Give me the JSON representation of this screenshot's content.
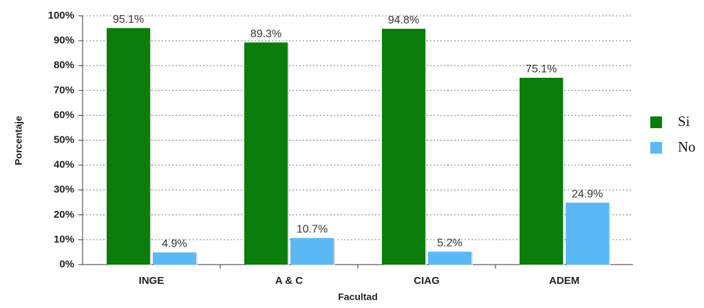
{
  "chart_data": {
    "type": "bar",
    "x_label": "Facultad",
    "y_label": "Porcentaje",
    "categories": [
      "INGE",
      "A & C",
      "CIAG",
      "ADEM"
    ],
    "series": [
      {
        "name": "Si",
        "color": "#0a7d0a",
        "values": [
          95.1,
          89.3,
          94.8,
          75.1
        ],
        "value_labels": [
          "95.1%",
          "89.3%",
          "94.8%",
          "75.1%"
        ]
      },
      {
        "name": "No",
        "color": "#5ab9f5",
        "values": [
          4.9,
          10.7,
          5.2,
          24.9
        ],
        "value_labels": [
          "4.9%",
          "10.7%",
          "5.2%",
          "24.9%"
        ]
      }
    ],
    "ylim": [
      0,
      100
    ],
    "yticks": [
      {
        "value": 0,
        "label": "0%"
      },
      {
        "value": 10,
        "label": "10%"
      },
      {
        "value": 20,
        "label": "20%"
      },
      {
        "value": 30,
        "label": "30%"
      },
      {
        "value": 40,
        "label": "40%"
      },
      {
        "value": 50,
        "label": "50%"
      },
      {
        "value": 60,
        "label": "60%"
      },
      {
        "value": 70,
        "label": "70%"
      },
      {
        "value": 80,
        "label": "80%"
      },
      {
        "value": 90,
        "label": "90%"
      },
      {
        "value": 100,
        "label": "100%"
      }
    ],
    "grid": true,
    "legend": "right"
  }
}
